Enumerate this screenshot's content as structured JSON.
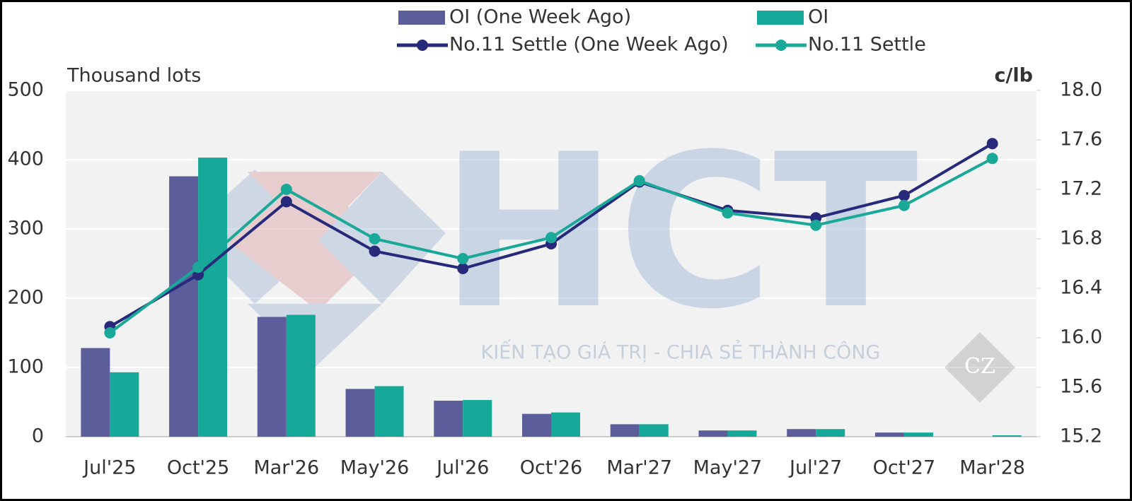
{
  "chart_data": {
    "type": "bar",
    "y_label": "Thousand lots",
    "y2_label": "c/lb",
    "watermark": {
      "logo": "HCT",
      "slogan": "KIẾN TẠO GIÁ TRỊ - CHIA SẺ THÀNH CÔNG",
      "badge": "CZ"
    },
    "categories": [
      "Jul'25",
      "Oct'25",
      "Mar'26",
      "May'26",
      "Jul'26",
      "Oct'26",
      "Mar'27",
      "May'27",
      "Jul'27",
      "Oct'27",
      "Mar'28"
    ],
    "series": [
      {
        "name": "OI (One Week Ago)",
        "type": "bar",
        "color": "#5c5e9c",
        "values": [
          128,
          376,
          173,
          69,
          52,
          33,
          18,
          9,
          11,
          6,
          0
        ]
      },
      {
        "name": "OI",
        "type": "bar",
        "color": "#16a898",
        "values": [
          93,
          403,
          176,
          73,
          53,
          35,
          18,
          9,
          11,
          6,
          2
        ]
      },
      {
        "name": "No.11 Settle (One Week Ago)",
        "type": "line",
        "axis": "y2",
        "color": "#27297a",
        "values": [
          16.09,
          16.51,
          17.1,
          16.7,
          16.56,
          16.76,
          17.26,
          17.03,
          16.97,
          17.15,
          17.57
        ]
      },
      {
        "name": "No.11 Settle",
        "type": "line",
        "axis": "y2",
        "color": "#1aa899",
        "values": [
          16.04,
          16.57,
          17.2,
          16.8,
          16.64,
          16.81,
          17.27,
          17.01,
          16.91,
          17.07,
          17.45
        ]
      }
    ],
    "ylim": [
      0,
      500
    ],
    "yticks": [
      0,
      100,
      200,
      300,
      400,
      500
    ],
    "y2lim": [
      15.2,
      18
    ],
    "y2ticks": [
      15.2,
      15.6,
      {
        "value": 16,
        "label": "16.0"
      },
      16.4,
      16.8,
      17.2,
      17.6,
      {
        "value": 18,
        "label": "18.0"
      }
    ],
    "grid": true
  }
}
